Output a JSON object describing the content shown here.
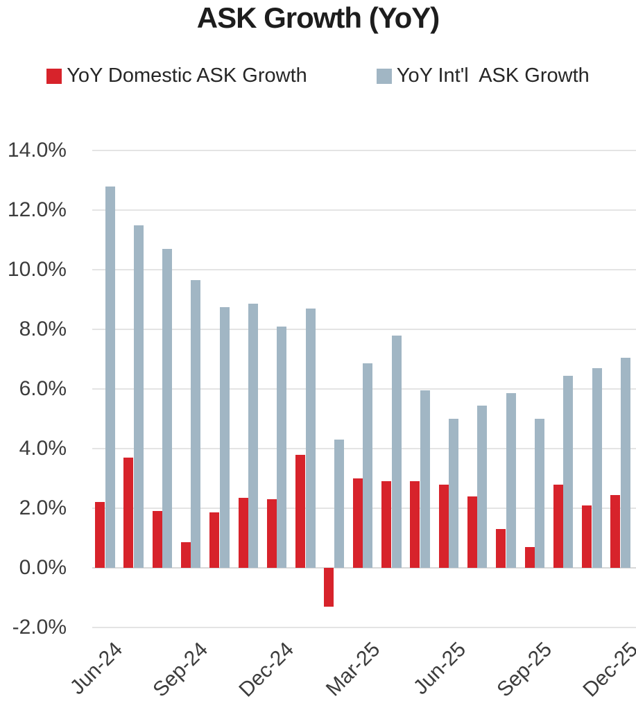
{
  "title": "ASK Growth (YoY)",
  "legend": [
    {
      "label": "YoY Domestic ASK Growth",
      "color": "#d7232b"
    },
    {
      "label": "YoY Int'l  ASK Growth",
      "color": "#a1b6c4"
    }
  ],
  "chart_data": {
    "type": "bar",
    "title": "ASK Growth (YoY)",
    "categories": [
      "Jun-24",
      "Jul-24",
      "Aug-24",
      "Sep-24",
      "Oct-24",
      "Nov-24",
      "Dec-24",
      "Jan-25",
      "Feb-25",
      "Mar-25",
      "Apr-25",
      "May-25",
      "Jun-25",
      "Jul-25",
      "Aug-25",
      "Sep-25",
      "Oct-25",
      "Nov-25",
      "Dec-25"
    ],
    "series": [
      {
        "name": "YoY Domestic ASK Growth",
        "color": "#d7232b",
        "values": [
          2.2,
          3.7,
          1.9,
          0.85,
          1.85,
          2.35,
          2.3,
          3.8,
          -1.3,
          3.0,
          2.9,
          2.9,
          2.8,
          2.4,
          1.3,
          0.7,
          2.8,
          2.1,
          2.45
        ]
      },
      {
        "name": "YoY Int'l  ASK Growth",
        "color": "#a1b6c4",
        "values": [
          12.8,
          11.5,
          10.7,
          9.65,
          8.75,
          8.85,
          8.1,
          8.7,
          4.3,
          6.85,
          7.8,
          5.95,
          5.0,
          5.45,
          5.85,
          5.0,
          6.45,
          6.7,
          7.05
        ]
      }
    ],
    "x_tick_labels": [
      "Jun-24",
      "Sep-24",
      "Dec-24",
      "Mar-25",
      "Jun-25",
      "Sep-25",
      "Dec-25"
    ],
    "x_tick_indices": [
      0,
      3,
      6,
      9,
      12,
      15,
      18
    ],
    "y_ticks": [
      "14.0%",
      "12.0%",
      "10.0%",
      "8.0%",
      "6.0%",
      "4.0%",
      "2.0%",
      "0.0%",
      "-2.0%"
    ],
    "ylim": [
      -2,
      14
    ],
    "y_unit": "%",
    "grid": true,
    "gridline_color": "#e4e4e4",
    "legend_position": "top"
  }
}
